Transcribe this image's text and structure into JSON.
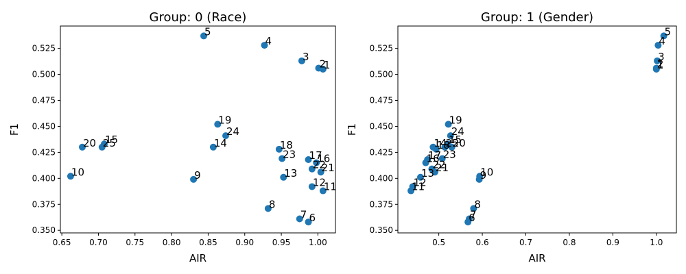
{
  "colors": {
    "marker": "#1f77b4"
  },
  "chart_data": [
    {
      "type": "scatter",
      "title": "Group: 0 (Race)",
      "xlabel": "AIR",
      "ylabel": "F1",
      "xlim": [
        0.648,
        1.024
      ],
      "ylim": [
        0.3475,
        0.5465
      ],
      "xticks": [
        "0.65",
        "0.70",
        "0.75",
        "0.80",
        "0.85",
        "0.90",
        "0.95",
        "1.00"
      ],
      "yticks": [
        "0.350",
        "0.375",
        "0.400",
        "0.425",
        "0.450",
        "0.475",
        "0.500",
        "0.525"
      ],
      "grid": false,
      "points": [
        {
          "label": "1",
          "x": 1.007,
          "y": 0.505
        },
        {
          "label": "2",
          "x": 1.001,
          "y": 0.506
        },
        {
          "label": "3",
          "x": 0.978,
          "y": 0.513
        },
        {
          "label": "4",
          "x": 0.927,
          "y": 0.528
        },
        {
          "label": "5",
          "x": 0.844,
          "y": 0.537
        },
        {
          "label": "6",
          "x": 0.987,
          "y": 0.358
        },
        {
          "label": "7",
          "x": 0.975,
          "y": 0.361
        },
        {
          "label": "8",
          "x": 0.932,
          "y": 0.371
        },
        {
          "label": "9",
          "x": 0.83,
          "y": 0.399
        },
        {
          "label": "10",
          "x": 0.662,
          "y": 0.402
        },
        {
          "label": "11",
          "x": 1.007,
          "y": 0.388
        },
        {
          "label": "12",
          "x": 0.992,
          "y": 0.392
        },
        {
          "label": "13",
          "x": 0.953,
          "y": 0.401
        },
        {
          "label": "14",
          "x": 0.857,
          "y": 0.43
        },
        {
          "label": "15",
          "x": 0.708,
          "y": 0.433
        },
        {
          "label": "16",
          "x": 0.998,
          "y": 0.415
        },
        {
          "label": "17",
          "x": 0.987,
          "y": 0.418
        },
        {
          "label": "18",
          "x": 0.947,
          "y": 0.428
        },
        {
          "label": "19",
          "x": 0.863,
          "y": 0.452
        },
        {
          "label": "20",
          "x": 0.678,
          "y": 0.43
        },
        {
          "label": "21",
          "x": 1.004,
          "y": 0.406
        },
        {
          "label": "22",
          "x": 0.992,
          "y": 0.409
        },
        {
          "label": "23",
          "x": 0.951,
          "y": 0.419
        },
        {
          "label": "24",
          "x": 0.874,
          "y": 0.441
        },
        {
          "label": "25",
          "x": 0.705,
          "y": 0.43
        }
      ]
    },
    {
      "type": "scatter",
      "title": "Group: 1 (Gender)",
      "xlabel": "AIR",
      "ylabel": "F1",
      "xlim": [
        0.406,
        1.046
      ],
      "ylim": [
        0.3475,
        0.5465
      ],
      "xticks": [
        "0.5",
        "0.6",
        "0.7",
        "0.8",
        "0.9",
        "1.0"
      ],
      "yticks": [
        "0.350",
        "0.375",
        "0.400",
        "0.425",
        "0.450",
        "0.475",
        "0.500",
        "0.525"
      ],
      "grid": false,
      "points": [
        {
          "label": "1",
          "x": 1.0,
          "y": 0.505
        },
        {
          "label": "2",
          "x": 1.0,
          "y": 0.506
        },
        {
          "label": "3",
          "x": 1.002,
          "y": 0.513
        },
        {
          "label": "4",
          "x": 1.004,
          "y": 0.528
        },
        {
          "label": "5",
          "x": 1.017,
          "y": 0.537
        },
        {
          "label": "6",
          "x": 0.567,
          "y": 0.358
        },
        {
          "label": "7",
          "x": 0.57,
          "y": 0.361
        },
        {
          "label": "8",
          "x": 0.58,
          "y": 0.371
        },
        {
          "label": "9",
          "x": 0.593,
          "y": 0.399
        },
        {
          "label": "10",
          "x": 0.594,
          "y": 0.402
        },
        {
          "label": "11",
          "x": 0.436,
          "y": 0.388
        },
        {
          "label": "12",
          "x": 0.44,
          "y": 0.392
        },
        {
          "label": "13",
          "x": 0.458,
          "y": 0.401
        },
        {
          "label": "14",
          "x": 0.487,
          "y": 0.43
        },
        {
          "label": "15",
          "x": 0.521,
          "y": 0.433
        },
        {
          "label": "16",
          "x": 0.47,
          "y": 0.415
        },
        {
          "label": "17",
          "x": 0.474,
          "y": 0.418
        },
        {
          "label": "18",
          "x": 0.494,
          "y": 0.428
        },
        {
          "label": "19",
          "x": 0.522,
          "y": 0.452
        },
        {
          "label": "20",
          "x": 0.53,
          "y": 0.43
        },
        {
          "label": "21",
          "x": 0.491,
          "y": 0.406
        },
        {
          "label": "22",
          "x": 0.484,
          "y": 0.409
        },
        {
          "label": "23",
          "x": 0.508,
          "y": 0.419
        },
        {
          "label": "24",
          "x": 0.527,
          "y": 0.441
        },
        {
          "label": "25",
          "x": 0.514,
          "y": 0.43
        }
      ]
    }
  ]
}
